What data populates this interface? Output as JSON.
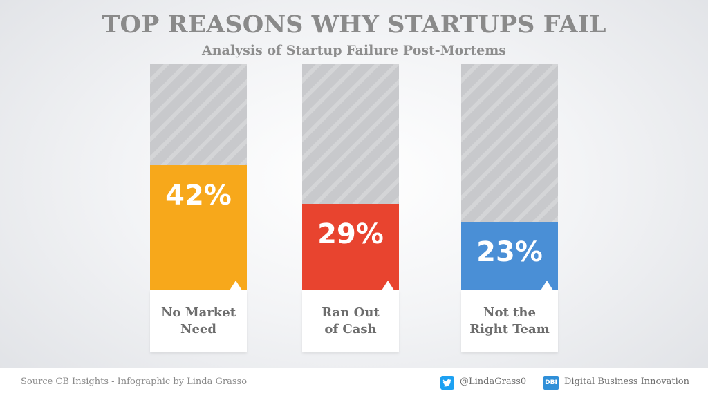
{
  "header": {
    "title": "TOP REASONS WHY STARTUPS FAIL",
    "subtitle": "Analysis of Startup Failure Post-Mortems"
  },
  "chart_data": {
    "type": "bar",
    "title": "TOP REASONS WHY STARTUPS FAIL",
    "subtitle": "Analysis of Startup Failure Post-Mortems",
    "categories": [
      "No Market\nNeed",
      "Ran Out\nof Cash",
      "Not the\nRight Team"
    ],
    "values": [
      42,
      29,
      23
    ],
    "value_labels": [
      "42%",
      "29%",
      "23%"
    ],
    "colors": [
      "#f7a81b",
      "#e8442f",
      "#4a8fd6"
    ],
    "ylim": [
      0,
      100
    ],
    "xlabel": "",
    "ylabel": ""
  },
  "footer": {
    "source": "Source CB Insights - Infographic by Linda Grasso",
    "twitter_icon": "twitter-icon",
    "twitter_handle": "@LindaGrass0",
    "brand_icon": "dbi-logo-icon",
    "brand_icon_text": "DBI",
    "brand_name": "Digital Business Innovation"
  }
}
